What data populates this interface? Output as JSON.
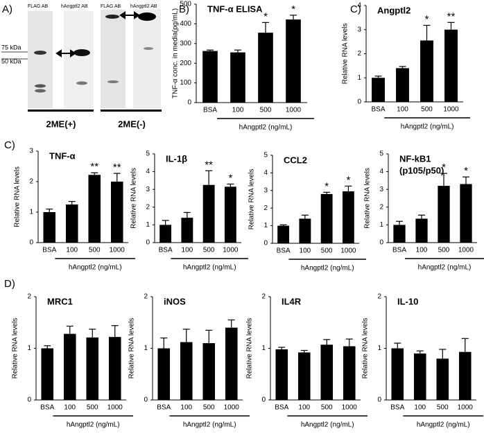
{
  "blot": {
    "panel": "A)",
    "lane_labels": [
      "FLAG AB",
      "hAngptl2  AB",
      "FLAG AB",
      "hAngptl2  AB"
    ],
    "markers": [
      "75 kDa",
      "50 kDa"
    ],
    "conditions": [
      "2ME(+)",
      "2ME(-)"
    ]
  },
  "chart_data": [
    {
      "type": "bar",
      "panel": "B)",
      "title": "TNF-α ELISA",
      "ylabel": "TNF-α conc. in media(pg/mL)",
      "xlabel": "hAngptl2 (ng/mL)",
      "categories": [
        "BSA",
        "100",
        "500",
        "1000"
      ],
      "values": [
        262,
        255,
        355,
        422
      ],
      "errors": [
        5,
        12,
        52,
        22
      ],
      "significance": [
        null,
        null,
        "*",
        "*"
      ],
      "ylim": [
        0,
        500
      ],
      "yticks": [
        0,
        100,
        200,
        300,
        400,
        500
      ],
      "color": "#000000"
    },
    {
      "type": "bar",
      "panel": "C)",
      "title": "Angptl2",
      "ylabel": "Relative RNA levels",
      "xlabel": "hAngptl2 (ng/mL)",
      "categories": [
        "BSA",
        "100",
        "500",
        "1000"
      ],
      "values": [
        1.0,
        1.4,
        2.55,
        3.0
      ],
      "errors": [
        0.07,
        0.07,
        0.63,
        0.3
      ],
      "significance": [
        null,
        null,
        "*",
        "**"
      ],
      "ylim": [
        0,
        4
      ],
      "yticks": [
        0,
        1,
        2,
        3,
        4
      ],
      "color": "#000000"
    },
    {
      "type": "bar",
      "panel": "C)",
      "title": "TNF-α",
      "ylabel": "Relative RNA levels",
      "xlabel": "hAngptl2 (ng/mL)",
      "categories": [
        "BSA",
        "100",
        "500",
        "1000"
      ],
      "values": [
        1.0,
        1.25,
        2.22,
        2.0
      ],
      "errors": [
        0.1,
        0.1,
        0.07,
        0.27
      ],
      "significance": [
        null,
        null,
        "**",
        "**"
      ],
      "ylim": [
        0,
        3
      ],
      "yticks": [
        0,
        1,
        2,
        3
      ],
      "color": "#000000"
    },
    {
      "type": "bar",
      "title": "IL-1β",
      "ylabel": "Relative RNA levels",
      "xlabel": "hAngptl2 (ng/mL)",
      "categories": [
        "BSA",
        "100",
        "500",
        "1000"
      ],
      "values": [
        1.0,
        1.4,
        3.25,
        3.15
      ],
      "errors": [
        0.25,
        0.3,
        0.8,
        0.15
      ],
      "significance": [
        null,
        null,
        "**",
        "*"
      ],
      "ylim": [
        0,
        5
      ],
      "yticks": [
        0,
        1,
        2,
        3,
        4,
        5
      ],
      "color": "#000000"
    },
    {
      "type": "bar",
      "title": "CCL2",
      "ylabel": "Relative RNA levels",
      "xlabel": "hAngptl2 (ng/mL)",
      "categories": [
        "BSA",
        "100",
        "500",
        "1000"
      ],
      "values": [
        1.0,
        1.4,
        2.8,
        2.95
      ],
      "errors": [
        0.05,
        0.2,
        0.1,
        0.3
      ],
      "significance": [
        null,
        null,
        "*",
        "*"
      ],
      "ylim": [
        0,
        5
      ],
      "yticks": [
        0,
        1,
        2,
        3,
        4,
        5
      ],
      "color": "#000000"
    },
    {
      "type": "bar",
      "title": "NF-kB1",
      "subtitle": "(p105/p50)",
      "ylabel": "Relative RNA levels",
      "xlabel": "hAngptl2 (ng/mL)",
      "categories": [
        "BSA",
        "100",
        "500",
        "1000"
      ],
      "values": [
        1.0,
        1.35,
        3.2,
        3.3
      ],
      "errors": [
        0.2,
        0.2,
        0.7,
        0.4
      ],
      "significance": [
        null,
        null,
        "*",
        "*"
      ],
      "ylim": [
        0,
        5
      ],
      "yticks": [
        0,
        1,
        2,
        3,
        4,
        5
      ],
      "color": "#000000"
    },
    {
      "type": "bar",
      "panel": "D)",
      "title": "MRC1",
      "ylabel": "Relative RNA levels",
      "xlabel": "hAngptl2 (ng/mL)",
      "categories": [
        "BSA",
        "100",
        "500",
        "1000"
      ],
      "values": [
        1.0,
        1.28,
        1.21,
        1.22
      ],
      "errors": [
        0.05,
        0.15,
        0.16,
        0.22
      ],
      "ylim": [
        0,
        2
      ],
      "yticks": [
        0,
        1,
        2
      ],
      "color": "#000000"
    },
    {
      "type": "bar",
      "title": "iNOS",
      "ylabel": "Relative RNA levels",
      "xlabel": "hAngptl2 (ng/mL)",
      "categories": [
        "BSA",
        "100",
        "500",
        "1000"
      ],
      "values": [
        1.0,
        1.12,
        1.1,
        1.4
      ],
      "errors": [
        0.2,
        0.25,
        0.25,
        0.15
      ],
      "ylim": [
        0,
        2
      ],
      "yticks": [
        0,
        1,
        2
      ],
      "color": "#000000"
    },
    {
      "type": "bar",
      "title": "IL4R",
      "ylabel": "Relative RNA levels",
      "xlabel": "hAngptl2 (ng/mL)",
      "categories": [
        "BSA",
        "100",
        "500",
        "1000"
      ],
      "values": [
        0.98,
        0.92,
        1.07,
        1.04
      ],
      "errors": [
        0.04,
        0.04,
        0.1,
        0.14
      ],
      "ylim": [
        0,
        2
      ],
      "yticks": [
        0,
        1,
        2
      ],
      "color": "#000000"
    },
    {
      "type": "bar",
      "title": "IL-10",
      "ylabel": "Relative RNA levels",
      "xlabel": "hAngptl2 (ng/mL)",
      "categories": [
        "BSA",
        "100",
        "500",
        "1000"
      ],
      "values": [
        1.0,
        0.9,
        0.8,
        0.93
      ],
      "errors": [
        0.1,
        0.05,
        0.18,
        0.26
      ],
      "ylim": [
        0,
        2
      ],
      "yticks": [
        0,
        1,
        2
      ],
      "color": "#000000"
    }
  ]
}
